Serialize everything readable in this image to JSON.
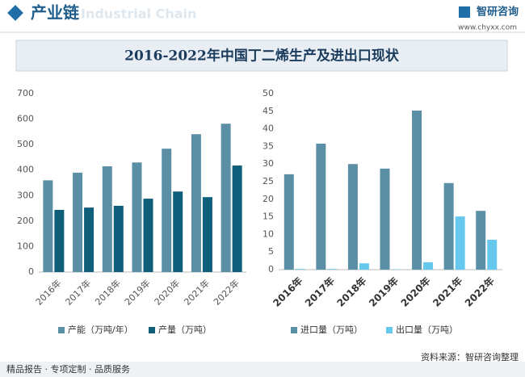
{
  "header": {
    "section": "产业链",
    "watermark": "Industrial Chain",
    "brand": "智研咨询",
    "site": "www.chyxx.com"
  },
  "title": "2016-2022年中国丁二烯生产及进出口现状",
  "chart_data": [
    {
      "type": "bar",
      "categories": [
        "2016年",
        "2017年",
        "2018年",
        "2019年",
        "2020年",
        "2021年",
        "2022年"
      ],
      "series": [
        {
          "name": "产能（万吨/年）",
          "color": "#5b8fa6",
          "values": [
            360,
            390,
            415,
            430,
            484,
            541,
            582
          ]
        },
        {
          "name": "产量（万吨）",
          "color": "#0f5e7a",
          "values": [
            244,
            253,
            260,
            288,
            316,
            294,
            418
          ]
        }
      ],
      "ylim": [
        0,
        700
      ],
      "yticks": [
        0,
        100,
        200,
        300,
        400,
        500,
        600,
        700
      ],
      "grid": false,
      "legend": "bottom"
    },
    {
      "type": "bar",
      "categories": [
        "2016年",
        "2017年",
        "2018年",
        "2019年",
        "2020年",
        "2021年",
        "2022年"
      ],
      "series": [
        {
          "name": "进口量（万吨）",
          "color": "#5b8fa6",
          "values": [
            27.1,
            35.8,
            30.0,
            28.7,
            45.2,
            24.6,
            16.7
          ]
        },
        {
          "name": "出口量（万吨）",
          "color": "#66c8ec",
          "values": [
            0.2,
            0.2,
            1.8,
            0.1,
            2.1,
            15.1,
            8.5
          ]
        }
      ],
      "ylim": [
        0,
        50
      ],
      "yticks": [
        0,
        5,
        10,
        15,
        20,
        25,
        30,
        35,
        40,
        45,
        50
      ],
      "grid": false,
      "legend": "bottom"
    }
  ],
  "footer": {
    "slogan": "精品报告 · 专项定制 · 品质服务",
    "source": "资料来源：智研咨询整理"
  }
}
